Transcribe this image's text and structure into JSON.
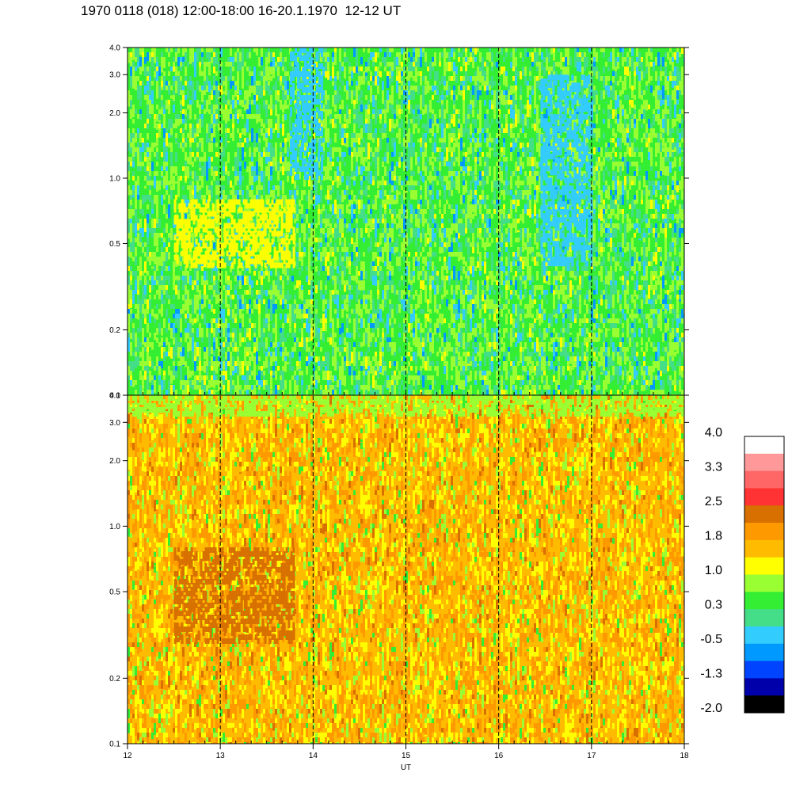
{
  "title": "1970 0118 (018) 12:00-18:00 16-20.1.1970  12-12 UT",
  "chart_data": [
    {
      "type": "heatmap",
      "panel": "top",
      "x": [
        12,
        13,
        14,
        15,
        16,
        17,
        18
      ],
      "xlim": [
        12,
        18
      ],
      "ylim": [
        0.1,
        4.0
      ],
      "yscale": "log",
      "yticks": [
        "0.1",
        "0.2",
        "0.5",
        "1.0",
        "2.0",
        "3.0",
        "4.0"
      ],
      "dominant_color": "#33ee33",
      "notes_bands": [
        {
          "x_range": [
            13.75,
            14.1
          ],
          "y_range": [
            1.0,
            4.0
          ],
          "level": "blue"
        },
        {
          "x_range": [
            16.45,
            17.0
          ],
          "y_range": [
            0.4,
            3.0
          ],
          "level": "blue"
        },
        {
          "x_range": [
            12.5,
            13.8
          ],
          "y_range": [
            0.4,
            0.8
          ],
          "level": "yellow"
        }
      ]
    },
    {
      "type": "heatmap",
      "panel": "bottom",
      "x": [
        12,
        13,
        14,
        15,
        16,
        17,
        18
      ],
      "xlim": [
        12,
        18
      ],
      "ylim": [
        0.1,
        4.0
      ],
      "yscale": "log",
      "yticks": [
        "0.1",
        "0.2",
        "0.5",
        "1.0",
        "2.0",
        "3.0",
        "4.0"
      ],
      "xticks": [
        "12",
        "13",
        "14",
        "15",
        "16",
        "17",
        "18"
      ],
      "xlabel": "UT",
      "dominant_color": "#ffb000",
      "notes_bands": [
        {
          "x_range": [
            12.5,
            13.8
          ],
          "y_range": [
            0.3,
            0.8
          ],
          "level": "dark-orange"
        },
        {
          "x_range": [
            12.0,
            18.0
          ],
          "y_range": [
            3.3,
            4.0
          ],
          "level": "yellow-green"
        }
      ]
    }
  ],
  "dashed_lines_x": [
    13,
    14,
    15,
    16,
    17
  ],
  "colorbar": {
    "labels": [
      "4.0",
      "3.3",
      "2.5",
      "1.8",
      "1.0",
      "0.3",
      "-0.5",
      "-1.3",
      "-2.0"
    ],
    "colors": [
      "#ffffff",
      "#ff9999",
      "#ff6666",
      "#ff3333",
      "#d87000",
      "#ff9900",
      "#ffbb00",
      "#ffff00",
      "#99ff33",
      "#33ee33",
      "#44dd88",
      "#33ccff",
      "#0099ff",
      "#0044ff",
      "#0000aa",
      "#000000"
    ]
  }
}
